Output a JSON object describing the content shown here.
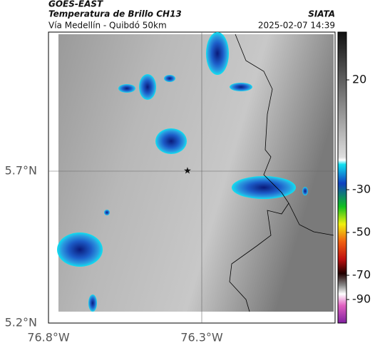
{
  "header": {
    "source": "GOES-EAST",
    "product": "Temperatura de Brillo CH13",
    "region": "Vía Medellín - Quibdó 50km",
    "org": "SIATA",
    "datetime": "2025-02-07 14:39"
  },
  "map": {
    "lat_ticks": [
      {
        "value": 5.7,
        "label": "5.7°N"
      },
      {
        "value": 5.2,
        "label": "5.2°N"
      }
    ],
    "lon_ticks": [
      {
        "value": -76.8,
        "label": "76.8°W"
      },
      {
        "value": -76.3,
        "label": "76.3°W"
      }
    ]
  },
  "colorbar": {
    "ticks": [
      20,
      -30,
      -50,
      -70,
      -90
    ]
  }
}
